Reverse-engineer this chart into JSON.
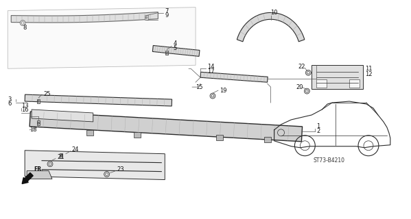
{
  "bg_color": "#ffffff",
  "fig_width": 5.99,
  "fig_height": 3.2,
  "dpi": 100,
  "diagram_code": "ST73-B4210",
  "col": "#2a2a2a",
  "col_light": "#aaaaaa",
  "col_fill": "#e8e8e8",
  "col_fill2": "#d0d0d0"
}
